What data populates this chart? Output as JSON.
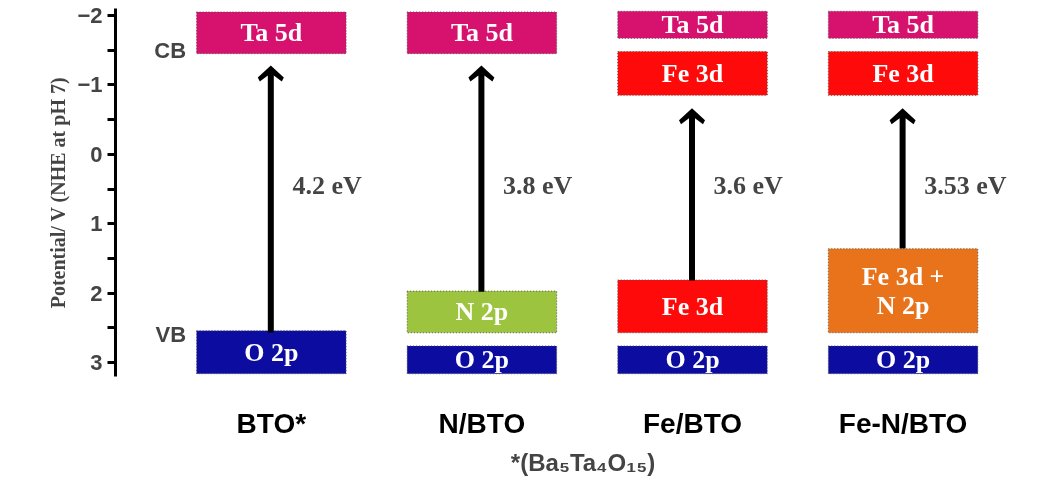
{
  "chart_data": {
    "type": "bar",
    "ylabel": "Potential/ V (NHE at pH 7)",
    "categories": [
      "BTO*",
      "N/BTO",
      "Fe/BTO",
      "Fe-N/BTO"
    ],
    "series": [
      {
        "values": [
          0.6,
          0.6,
          0.39,
          0.39
        ],
        "base": [
          -2.05,
          -2.05,
          -2.06,
          -2.06
        ],
        "color": "#d6116e",
        "value_labels": [
          "Ta 5d",
          "Ta 5d",
          "Ta 5d",
          "Ta 5d"
        ]
      },
      {
        "values": [
          null,
          null,
          0.63,
          0.63
        ],
        "base": [
          null,
          null,
          -1.48,
          -1.48
        ],
        "color": "#ff0a0a",
        "value_labels": [
          null,
          null,
          "Fe 3d",
          "Fe 3d"
        ]
      },
      {
        "values": [
          null,
          0.6,
          0.76,
          1.21
        ],
        "base": [
          null,
          1.97,
          1.81,
          1.36
        ],
        "colors": [
          null,
          "#9dc43f",
          "#ff0a0a",
          "#e8731a"
        ],
        "value_labels": [
          null,
          "N 2p",
          "Fe 3d",
          "Fe 3d + N 2p"
        ]
      },
      {
        "values": [
          0.62,
          0.4,
          0.4,
          0.4
        ],
        "base": [
          2.54,
          2.76,
          2.76,
          2.76
        ],
        "color": "#0c0ca0",
        "value_labels": [
          "O 2p",
          "O 2p",
          "O 2p",
          "O 2p"
        ]
      }
    ],
    "ylim": [
      3.2,
      -2.1
    ],
    "yticks": [
      -2,
      -1,
      0,
      1,
      2,
      3
    ],
    "grid": false,
    "annotations": [
      "CB",
      "VB",
      "4.2 eV",
      "3.8 eV",
      "3.6 eV",
      "3.53 eV",
      "*(Ba₅Ta₄O₁₅)"
    ]
  }
}
